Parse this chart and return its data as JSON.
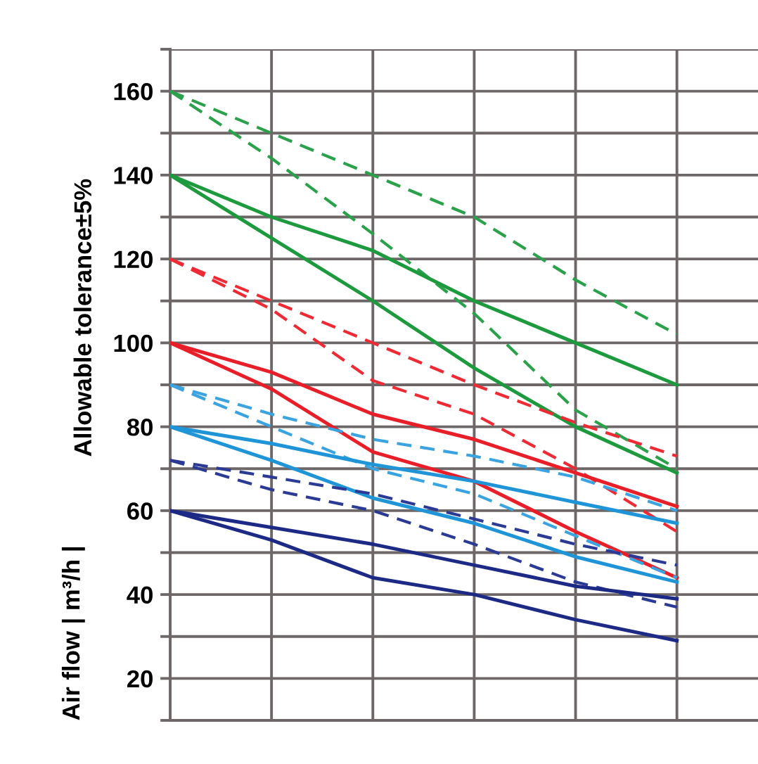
{
  "chart_data": {
    "type": "line",
    "ylabel": "Air flow | m³/h |",
    "annotations": [
      "Allowable tolerance±5%"
    ],
    "categories": [
      null,
      null,
      null,
      null,
      null,
      null
    ],
    "ylim": [
      10,
      170
    ],
    "yticks": [
      {
        "value": 10,
        "label": null
      },
      20,
      {
        "value": 30,
        "label": null
      },
      40,
      {
        "value": 50,
        "label": null
      },
      60,
      {
        "value": 70,
        "label": null
      },
      80,
      {
        "value": 90,
        "label": null
      },
      100,
      {
        "value": 110,
        "label": null
      },
      120,
      {
        "value": 130,
        "label": null
      },
      140,
      {
        "value": 150,
        "label": null
      },
      160,
      {
        "value": 170,
        "label": null
      }
    ],
    "grid": true,
    "marker": "none",
    "series": [
      {
        "color": "#2aa14a",
        "line_style": "dashed",
        "values": [
          160,
          150,
          140,
          130,
          115,
          102
        ]
      },
      {
        "color": "#2aa14a",
        "line_style": "dashed",
        "values": [
          160,
          144,
          126,
          107,
          84,
          70
        ]
      },
      {
        "color": "#1e9a3e",
        "line_style": "solid",
        "values": [
          140,
          130,
          122,
          110,
          100,
          90
        ]
      },
      {
        "color": "#1e9a3e",
        "line_style": "solid",
        "values": [
          140,
          125,
          110,
          94,
          80,
          69
        ]
      },
      {
        "color": "#ee2a35",
        "line_style": "dashed",
        "values": [
          120,
          110,
          100,
          90,
          81,
          73
        ]
      },
      {
        "color": "#ee2a35",
        "line_style": "dashed",
        "values": [
          120,
          108,
          91,
          83,
          70,
          55
        ]
      },
      {
        "color": "#e81e28",
        "line_style": "solid",
        "values": [
          100,
          93,
          83,
          77,
          69,
          61
        ]
      },
      {
        "color": "#e81e28",
        "line_style": "solid",
        "values": [
          100,
          89,
          74,
          67,
          55,
          44
        ]
      },
      {
        "color": "#3aa3e0",
        "line_style": "dashed",
        "values": [
          90,
          83,
          77,
          73,
          68,
          60
        ]
      },
      {
        "color": "#3aa3e0",
        "line_style": "dashed",
        "values": [
          90,
          80,
          70,
          64,
          54,
          44
        ]
      },
      {
        "color": "#1f95d8",
        "line_style": "solid",
        "values": [
          80,
          76,
          71,
          67,
          62,
          57
        ]
      },
      {
        "color": "#1f95d8",
        "line_style": "solid",
        "values": [
          80,
          72,
          63,
          57,
          49,
          43
        ]
      },
      {
        "color": "#2b3a94",
        "line_style": "dashed",
        "values": [
          72,
          68,
          64,
          58,
          52,
          47
        ]
      },
      {
        "color": "#2b3a94",
        "line_style": "dashed",
        "values": [
          72,
          65,
          60,
          52,
          43,
          37
        ]
      },
      {
        "color": "#1c2a86",
        "line_style": "solid",
        "values": [
          60,
          56,
          52,
          47,
          42,
          39
        ]
      },
      {
        "color": "#1c2a86",
        "line_style": "solid",
        "values": [
          60,
          53,
          44,
          40,
          34,
          29
        ]
      }
    ]
  }
}
